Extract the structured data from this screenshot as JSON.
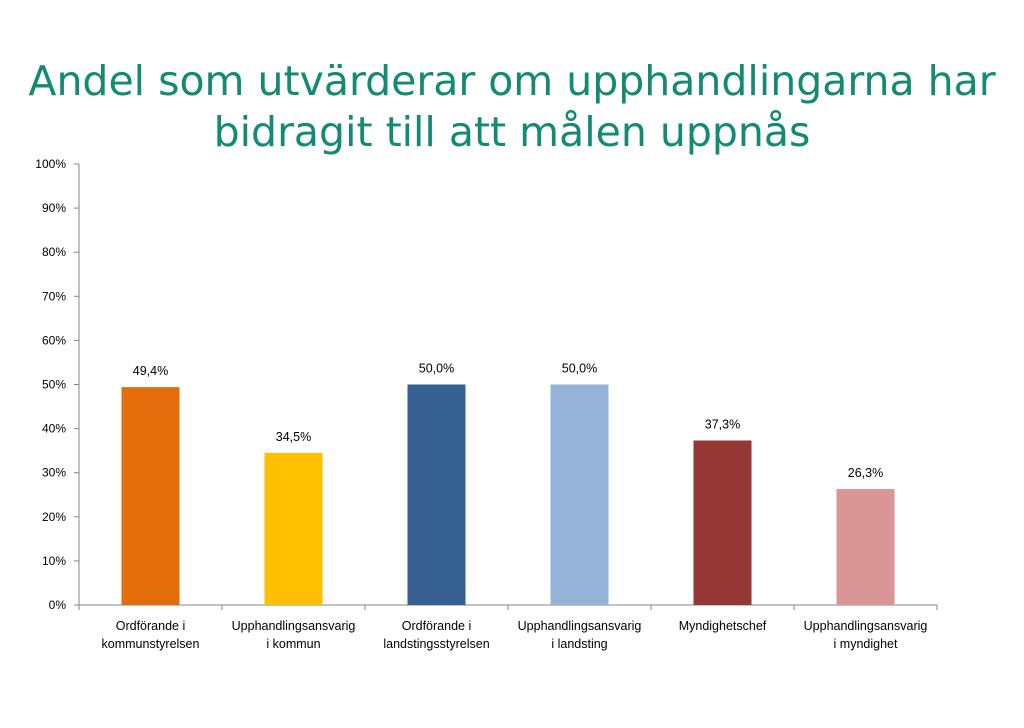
{
  "chart_data": {
    "type": "bar",
    "title_lines": [
      "Andel som utvärderar om upphandlingarna har",
      "bidragit till att målen uppnås"
    ],
    "categories": [
      [
        "Ordförande i",
        "kommunstyrelsen"
      ],
      [
        "Upphandlingsansvarig",
        "i kommun"
      ],
      [
        "Ordförande i",
        "landstingsstyrelsen"
      ],
      [
        "Upphandlingsansvarig",
        "i landsting"
      ],
      [
        "Myndighetschef"
      ],
      [
        "Upphandlingsansvarig",
        "i myndighet"
      ]
    ],
    "values": [
      49.4,
      34.5,
      50.0,
      50.0,
      37.3,
      26.3
    ],
    "data_labels": [
      "49,4%",
      "34,5%",
      "50,0%",
      "50,0%",
      "37,3%",
      "26,3%"
    ],
    "colors": [
      "#e46c0a",
      "#ffc000",
      "#376092",
      "#95b3d7",
      "#953735",
      "#d99694"
    ],
    "ylim": [
      0,
      100
    ],
    "yticks": [
      0,
      10,
      20,
      30,
      40,
      50,
      60,
      70,
      80,
      90,
      100
    ],
    "ytick_labels": [
      "0%",
      "10%",
      "20%",
      "30%",
      "40%",
      "50%",
      "60%",
      "70%",
      "80%",
      "90%",
      "100%"
    ],
    "grid": false,
    "legend": "none"
  }
}
